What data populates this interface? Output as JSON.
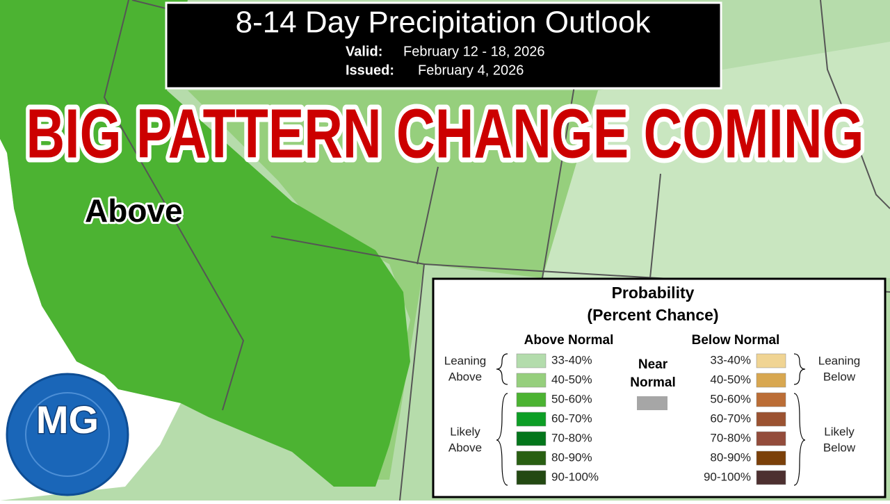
{
  "header": {
    "title": "8-14 Day Precipitation Outlook",
    "valid_label": "Valid:",
    "valid": "February 12 - 18, 2026",
    "issued_label": "Issued:",
    "issued": "February 4, 2026"
  },
  "headline": "BIG PATTERN CHANGE COMING",
  "map_label": "Above",
  "logo": "MG",
  "legend": {
    "title": [
      "Probability",
      "(Percent Chance)"
    ],
    "above_heading": "Above Normal",
    "below_heading": "Below Normal",
    "near_normal": [
      "Near",
      "Normal"
    ],
    "near_color": "#a6a6a6",
    "leaning_above": [
      "Leaning",
      "Above"
    ],
    "likely_above": [
      "Likely",
      "Above"
    ],
    "leaning_below": [
      "Leaning",
      "Below"
    ],
    "likely_below": [
      "Likely",
      "Below"
    ],
    "above": [
      {
        "label": "33-40%",
        "color": "#b3dcac"
      },
      {
        "label": "40-50%",
        "color": "#96cf7d"
      },
      {
        "label": "50-60%",
        "color": "#4cb332"
      },
      {
        "label": "60-70%",
        "color": "#0d9e26"
      },
      {
        "label": "70-80%",
        "color": "#04761b"
      },
      {
        "label": "80-90%",
        "color": "#295f12"
      },
      {
        "label": "90-100%",
        "color": "#234912"
      }
    ],
    "below": [
      {
        "label": "33-40%",
        "color": "#f0d493"
      },
      {
        "label": "40-50%",
        "color": "#d8a750"
      },
      {
        "label": "50-60%",
        "color": "#bb6d36"
      },
      {
        "label": "60-70%",
        "color": "#9b5231"
      },
      {
        "label": "70-80%",
        "color": "#934c3b"
      },
      {
        "label": "80-90%",
        "color": "#7b4009"
      },
      {
        "label": "90-100%",
        "color": "#4d3030"
      }
    ]
  }
}
